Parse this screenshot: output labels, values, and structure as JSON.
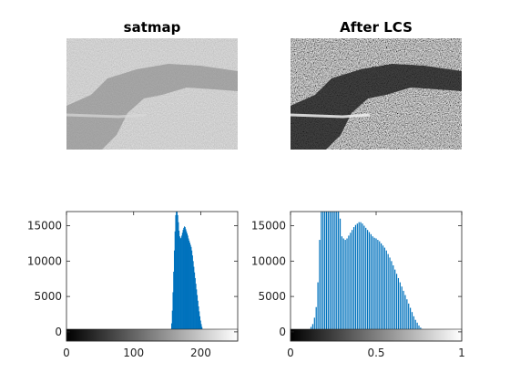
{
  "panels": {
    "orig_image": {
      "title": "satmap",
      "tone": "low-contrast gray aerial image"
    },
    "lcs_image": {
      "title": "After LCS",
      "tone": "high-contrast gray aerial image"
    }
  },
  "chart_data": [
    {
      "type": "bar",
      "name": "histogram-original",
      "title": "",
      "xlabel": "",
      "ylabel": "",
      "xlim": [
        0,
        255
      ],
      "ylim": [
        -1300,
        17000
      ],
      "x_ticks": [
        "0",
        "100",
        "200"
      ],
      "x_tick_values": [
        0,
        100,
        200
      ],
      "y_ticks": [
        "0",
        "5000",
        "10000",
        "15000"
      ],
      "y_tick_values": [
        0,
        5000,
        10000,
        15000
      ],
      "bar_color": "#0072BD",
      "colorbar": {
        "from": "#000000",
        "to": "#ffffff"
      },
      "bins_start": 150,
      "bin_width": 1,
      "values": [
        0,
        0,
        0,
        0,
        80,
        400,
        1200,
        3000,
        5600,
        8500,
        11500,
        14200,
        16500,
        17000,
        17000,
        16500,
        15500,
        14300,
        13500,
        13200,
        13300,
        13600,
        14000,
        14400,
        14700,
        14900,
        14800,
        14500,
        14200,
        13900,
        13600,
        13200,
        12900,
        12600,
        12300,
        12000,
        11500,
        10800,
        10000,
        9200,
        8400,
        7600,
        6800,
        6000,
        5200,
        4400,
        3600,
        2900,
        2200,
        1600,
        1100,
        700,
        400,
        200,
        100,
        40,
        10,
        0,
        0,
        0,
        0,
        0
      ]
    },
    {
      "type": "bar",
      "name": "histogram-after-lcs",
      "title": "",
      "xlabel": "",
      "ylabel": "",
      "xlim": [
        0,
        1
      ],
      "ylim": [
        -1300,
        17000
      ],
      "x_ticks": [
        "0",
        "0.5",
        "1"
      ],
      "x_tick_values": [
        0,
        0.5,
        1
      ],
      "y_ticks": [
        "0",
        "5000",
        "10000",
        "15000"
      ],
      "y_tick_values": [
        0,
        5000,
        10000,
        15000
      ],
      "bar_color": "#0072BD",
      "colorbar": {
        "from": "#000000",
        "to": "#ffffff"
      },
      "x": [
        0.1,
        0.11,
        0.12,
        0.13,
        0.14,
        0.15,
        0.16,
        0.17,
        0.18,
        0.19,
        0.2,
        0.21,
        0.22,
        0.23,
        0.24,
        0.25,
        0.26,
        0.27,
        0.28,
        0.29,
        0.3,
        0.31,
        0.32,
        0.33,
        0.34,
        0.35,
        0.36,
        0.37,
        0.38,
        0.39,
        0.4,
        0.41,
        0.42,
        0.43,
        0.44,
        0.45,
        0.46,
        0.47,
        0.48,
        0.49,
        0.5,
        0.51,
        0.52,
        0.53,
        0.54,
        0.55,
        0.56,
        0.57,
        0.58,
        0.59,
        0.6,
        0.61,
        0.62,
        0.63,
        0.64,
        0.65,
        0.66,
        0.67,
        0.68,
        0.69,
        0.7,
        0.71,
        0.72,
        0.73,
        0.74,
        0.75,
        0.76,
        0.77,
        0.78,
        0.79,
        0.8,
        0.81,
        0.82,
        0.83,
        0.84,
        0.85
      ],
      "values": [
        200,
        400,
        700,
        1100,
        2000,
        3500,
        7000,
        13000,
        17000,
        17000,
        17000,
        17000,
        17000,
        17000,
        17000,
        17000,
        17000,
        17000,
        17000,
        16000,
        13500,
        13200,
        13000,
        13200,
        13600,
        14000,
        14400,
        14800,
        15100,
        15300,
        15500,
        15500,
        15300,
        15000,
        14700,
        14400,
        14100,
        13800,
        13500,
        13300,
        13200,
        13000,
        12800,
        12500,
        12200,
        11900,
        11500,
        11000,
        10500,
        10000,
        9400,
        8800,
        8200,
        7600,
        7000,
        6400,
        5800,
        5200,
        4600,
        4000,
        3400,
        2800,
        2200,
        1700,
        1300,
        900,
        600,
        400,
        250,
        150,
        80,
        40,
        20,
        10,
        0,
        0
      ]
    }
  ]
}
